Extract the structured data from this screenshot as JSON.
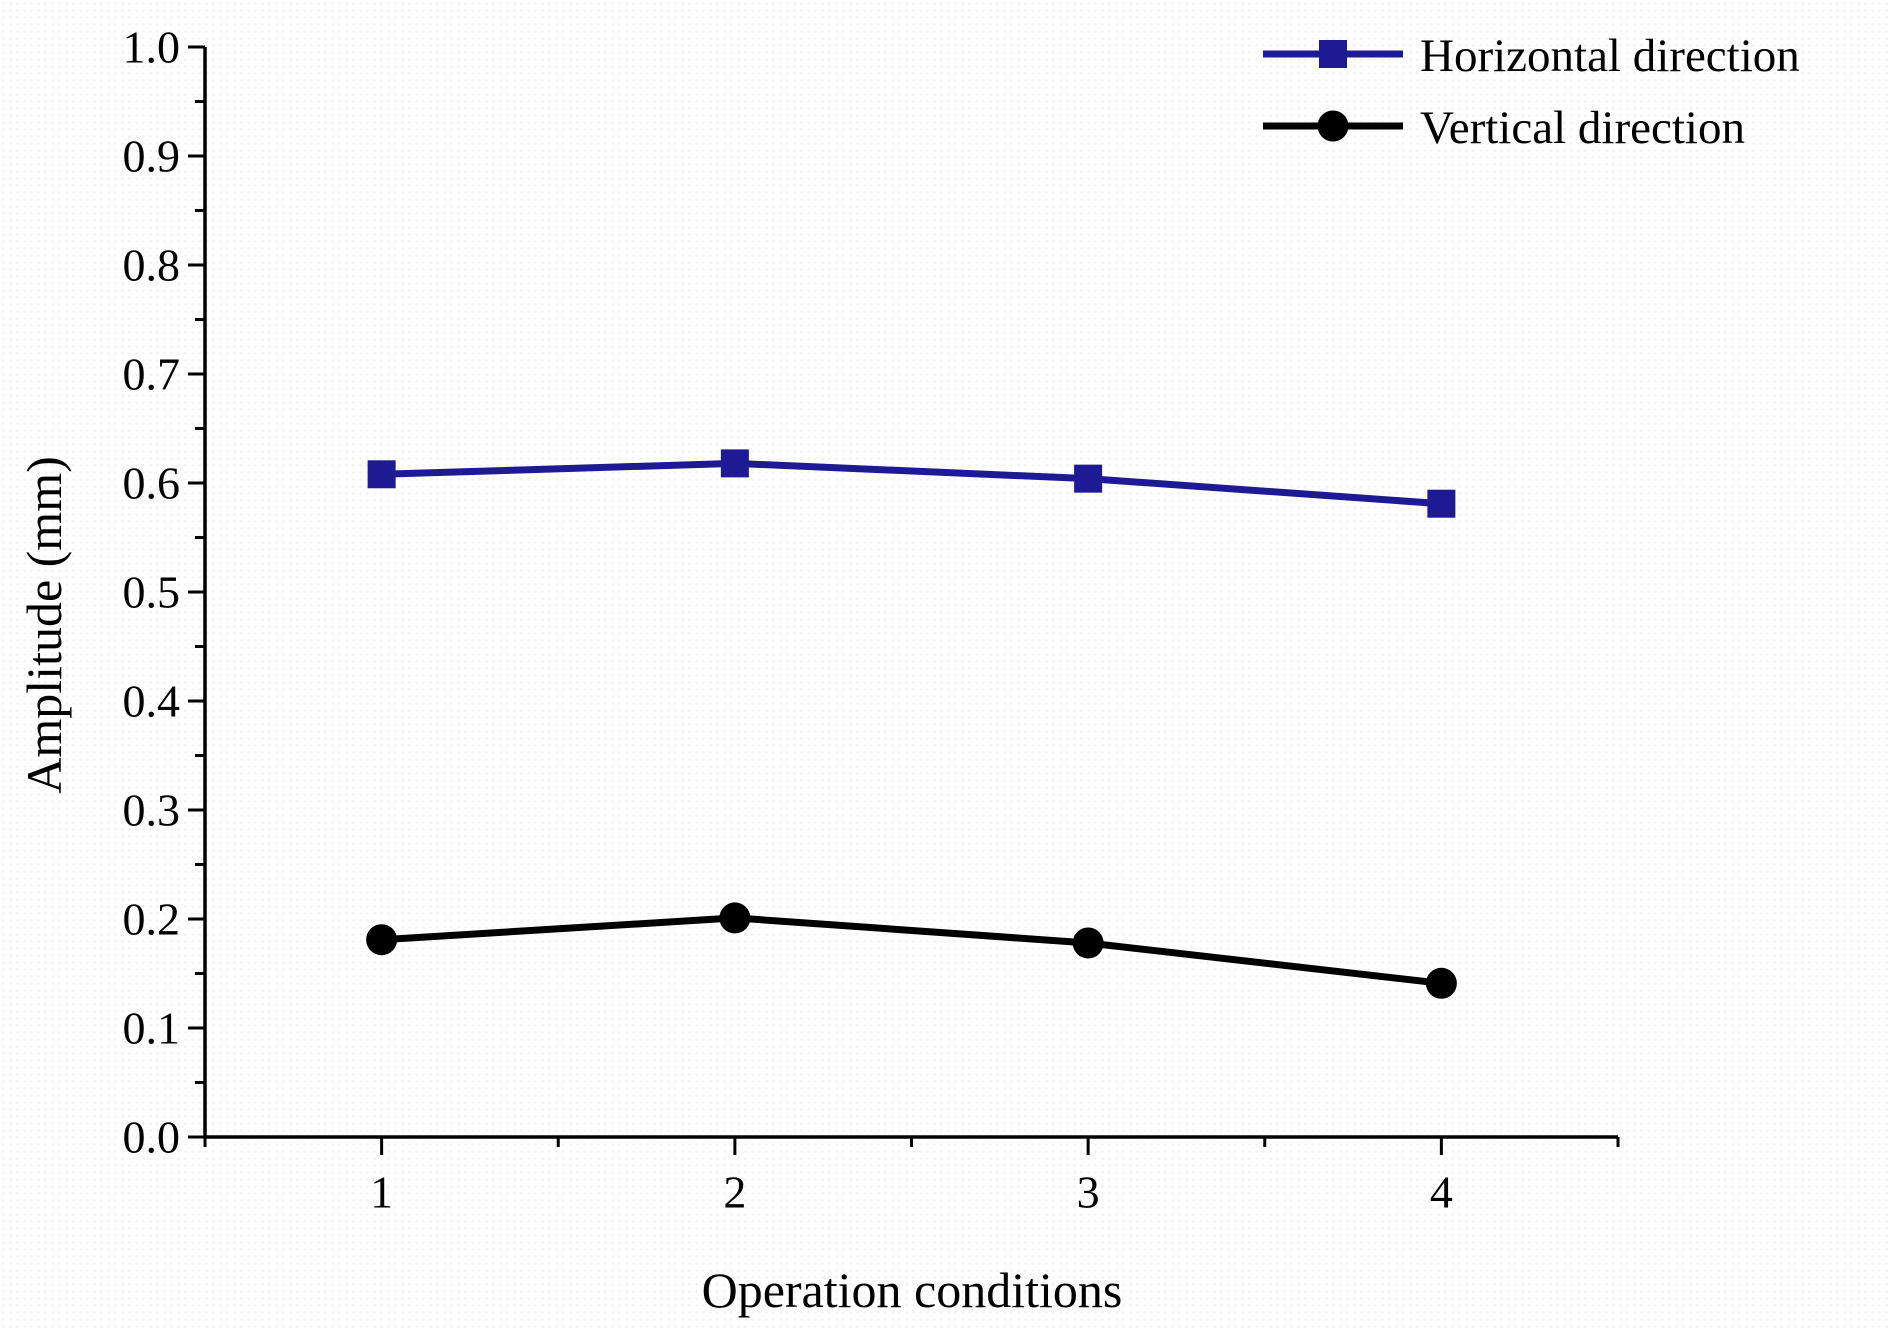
{
  "figure": {
    "background": "#fefefe",
    "axis_color": "#000000"
  },
  "chart_data": {
    "type": "line",
    "title": "",
    "xlabel": "Operation conditions",
    "ylabel": "Amplitude (mm)",
    "x": [
      1,
      2,
      3,
      4
    ],
    "series": [
      {
        "name": "Horizontal direction",
        "marker": "square",
        "color": "#1d1a94",
        "values": [
          0.608,
          0.618,
          0.604,
          0.581
        ]
      },
      {
        "name": "Vertical direction",
        "marker": "circle",
        "color": "#000000",
        "values": [
          0.181,
          0.201,
          0.178,
          0.141
        ]
      }
    ],
    "xlim": [
      0.5,
      4.5
    ],
    "ylim": [
      0.0,
      1.0
    ],
    "x_tick_labels": [
      "1",
      "2",
      "3",
      "4"
    ],
    "x_minor_ticks": [
      0.5,
      1.5,
      2.5,
      3.5,
      4.5
    ],
    "y_tick_labels": [
      "0.0",
      "0.1",
      "0.2",
      "0.3",
      "0.4",
      "0.5",
      "0.6",
      "0.7",
      "0.8",
      "0.9",
      "1.0"
    ],
    "y_tick_step": 0.1,
    "y_minor_step": 0.05,
    "grid": false,
    "legend_position": "top-right"
  }
}
